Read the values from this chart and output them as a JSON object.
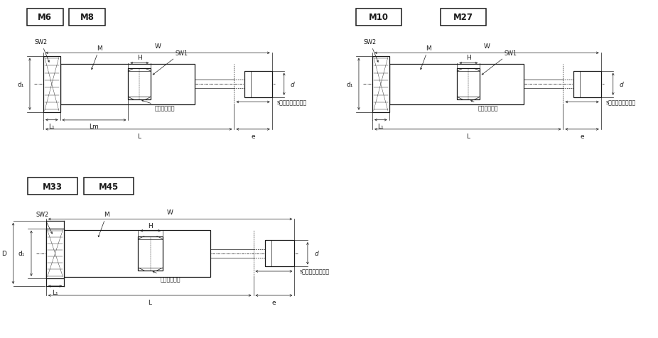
{
  "background": "#ffffff",
  "line_color": "#1a1a1a",
  "diagrams": [
    {
      "title_boxes": [
        "M6",
        "M8"
      ],
      "title_sep": " ",
      "ox": 0.02,
      "oy": 0.52,
      "ow": 0.46,
      "oh": 0.46,
      "has_D": false,
      "has_Lm": true,
      "has_SW1": true
    },
    {
      "title_boxes": [
        "M10",
        "M27"
      ],
      "title_sep": " - ",
      "ox": 0.52,
      "oy": 0.52,
      "ow": 0.46,
      "oh": 0.46,
      "has_D": false,
      "has_Lm": false,
      "has_SW1": true
    },
    {
      "title_boxes": [
        "M33",
        "M45"
      ],
      "title_sep": " ",
      "ox": 0.02,
      "oy": 0.02,
      "ow": 0.5,
      "oh": 0.46,
      "has_D": true,
      "has_Lm": false,
      "has_SW1": false
    }
  ]
}
